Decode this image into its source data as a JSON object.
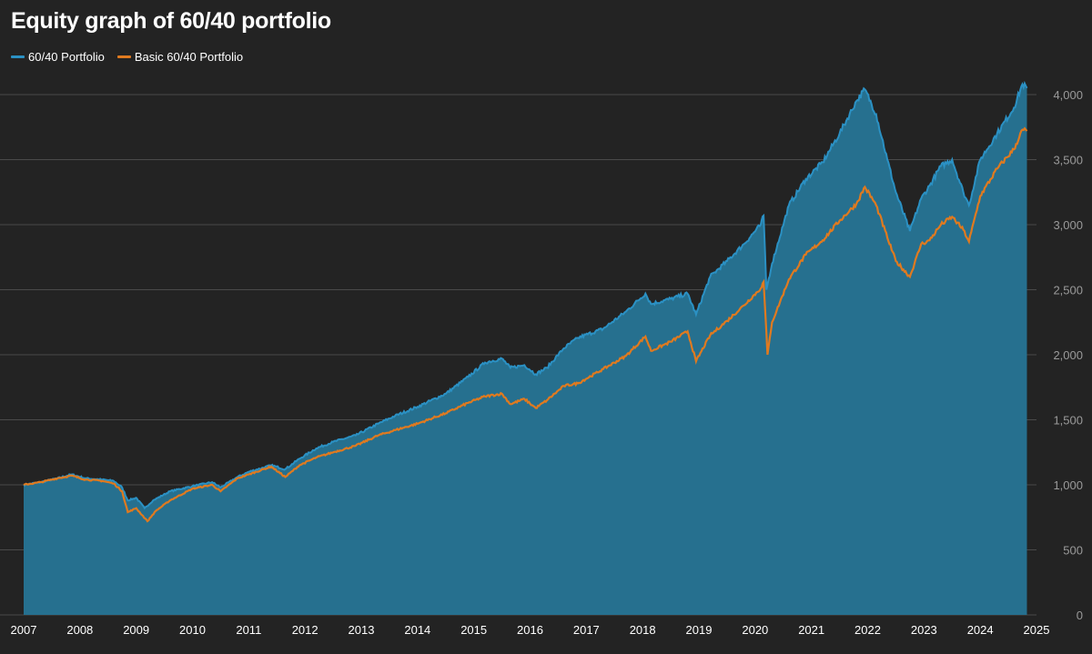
{
  "colors": {
    "background": "#232323",
    "grid": "#4a4a4a",
    "area_fill": "#26708f",
    "primary_line": "#2b91c4",
    "secondary_line": "#e07a1f",
    "axis_text": "#9a9a9a",
    "xaxis_text": "#ffffff"
  },
  "chart_data": {
    "type": "area",
    "title": "Equity graph of 60/40 portfolio",
    "xlabel": "",
    "ylabel": "",
    "legend_position": "top-left",
    "grid": true,
    "ylim": [
      0,
      4000
    ],
    "xlim": [
      2007.0,
      2025.0
    ],
    "x_ticks": [
      "2007",
      "2008",
      "2009",
      "2010",
      "2011",
      "2012",
      "2013",
      "2014",
      "2015",
      "2016",
      "2017",
      "2018",
      "2019",
      "2020",
      "2021",
      "2022",
      "2023",
      "2024",
      "2025"
    ],
    "y_ticks": [
      0,
      500,
      1000,
      1500,
      2000,
      2500,
      3000,
      3500,
      4000
    ],
    "y_tick_labels": [
      "0",
      "500",
      "1,000",
      "1,500",
      "2,000",
      "2,500",
      "3,000",
      "3,500",
      "4,000"
    ],
    "y_axis_side": "right",
    "series": [
      {
        "name": "60/40 Portfolio",
        "color": "#2b91c4",
        "filled": true,
        "points": [
          [
            2007.0,
            1000
          ],
          [
            2007.3,
            1020
          ],
          [
            2007.6,
            1050
          ],
          [
            2007.85,
            1080
          ],
          [
            2008.1,
            1050
          ],
          [
            2008.4,
            1040
          ],
          [
            2008.6,
            1030
          ],
          [
            2008.75,
            980
          ],
          [
            2008.85,
            880
          ],
          [
            2009.0,
            900
          ],
          [
            2009.15,
            820
          ],
          [
            2009.3,
            880
          ],
          [
            2009.6,
            950
          ],
          [
            2010.0,
            990
          ],
          [
            2010.35,
            1020
          ],
          [
            2010.5,
            980
          ],
          [
            2010.8,
            1060
          ],
          [
            2011.0,
            1100
          ],
          [
            2011.4,
            1150
          ],
          [
            2011.65,
            1120
          ],
          [
            2011.9,
            1200
          ],
          [
            2012.2,
            1280
          ],
          [
            2012.5,
            1330
          ],
          [
            2012.9,
            1380
          ],
          [
            2013.3,
            1470
          ],
          [
            2013.6,
            1530
          ],
          [
            2014.0,
            1600
          ],
          [
            2014.5,
            1700
          ],
          [
            2014.9,
            1830
          ],
          [
            2015.2,
            1940
          ],
          [
            2015.5,
            1970
          ],
          [
            2015.65,
            1900
          ],
          [
            2015.9,
            1920
          ],
          [
            2016.1,
            1850
          ],
          [
            2016.3,
            1900
          ],
          [
            2016.6,
            2050
          ],
          [
            2016.85,
            2130
          ],
          [
            2017.3,
            2200
          ],
          [
            2017.7,
            2330
          ],
          [
            2018.05,
            2470
          ],
          [
            2018.15,
            2390
          ],
          [
            2018.5,
            2430
          ],
          [
            2018.8,
            2470
          ],
          [
            2018.95,
            2310
          ],
          [
            2019.2,
            2600
          ],
          [
            2019.5,
            2720
          ],
          [
            2019.8,
            2850
          ],
          [
            2020.1,
            3000
          ],
          [
            2020.15,
            3070
          ],
          [
            2020.2,
            2500
          ],
          [
            2020.3,
            2700
          ],
          [
            2020.6,
            3150
          ],
          [
            2020.9,
            3350
          ],
          [
            2021.2,
            3480
          ],
          [
            2021.5,
            3700
          ],
          [
            2021.8,
            3950
          ],
          [
            2021.95,
            4040
          ],
          [
            2022.15,
            3850
          ],
          [
            2022.35,
            3500
          ],
          [
            2022.5,
            3250
          ],
          [
            2022.75,
            2950
          ],
          [
            2022.95,
            3200
          ],
          [
            2023.1,
            3300
          ],
          [
            2023.3,
            3450
          ],
          [
            2023.5,
            3500
          ],
          [
            2023.7,
            3250
          ],
          [
            2023.8,
            3150
          ],
          [
            2024.0,
            3500
          ],
          [
            2024.3,
            3700
          ],
          [
            2024.6,
            3900
          ],
          [
            2024.75,
            4080
          ],
          [
            2024.83,
            4050
          ]
        ]
      },
      {
        "name": "Basic 60/40 Portfolio",
        "color": "#e07a1f",
        "filled": false,
        "points": [
          [
            2007.0,
            1000
          ],
          [
            2007.3,
            1020
          ],
          [
            2007.6,
            1050
          ],
          [
            2007.85,
            1070
          ],
          [
            2008.1,
            1040
          ],
          [
            2008.4,
            1030
          ],
          [
            2008.6,
            1010
          ],
          [
            2008.75,
            950
          ],
          [
            2008.85,
            790
          ],
          [
            2009.0,
            820
          ],
          [
            2009.2,
            720
          ],
          [
            2009.35,
            800
          ],
          [
            2009.6,
            880
          ],
          [
            2010.0,
            970
          ],
          [
            2010.35,
            1000
          ],
          [
            2010.5,
            950
          ],
          [
            2010.8,
            1050
          ],
          [
            2011.0,
            1080
          ],
          [
            2011.4,
            1140
          ],
          [
            2011.65,
            1060
          ],
          [
            2011.9,
            1150
          ],
          [
            2012.2,
            1210
          ],
          [
            2012.5,
            1250
          ],
          [
            2012.9,
            1300
          ],
          [
            2013.3,
            1380
          ],
          [
            2013.6,
            1420
          ],
          [
            2014.0,
            1470
          ],
          [
            2014.5,
            1550
          ],
          [
            2014.9,
            1630
          ],
          [
            2015.2,
            1680
          ],
          [
            2015.5,
            1700
          ],
          [
            2015.65,
            1620
          ],
          [
            2015.9,
            1660
          ],
          [
            2016.1,
            1590
          ],
          [
            2016.3,
            1650
          ],
          [
            2016.6,
            1760
          ],
          [
            2016.85,
            1780
          ],
          [
            2017.3,
            1890
          ],
          [
            2017.7,
            1990
          ],
          [
            2018.05,
            2140
          ],
          [
            2018.15,
            2030
          ],
          [
            2018.5,
            2100
          ],
          [
            2018.8,
            2180
          ],
          [
            2018.95,
            1950
          ],
          [
            2019.2,
            2150
          ],
          [
            2019.5,
            2260
          ],
          [
            2019.8,
            2380
          ],
          [
            2020.1,
            2510
          ],
          [
            2020.15,
            2560
          ],
          [
            2020.22,
            2000
          ],
          [
            2020.3,
            2250
          ],
          [
            2020.6,
            2580
          ],
          [
            2020.9,
            2770
          ],
          [
            2021.2,
            2880
          ],
          [
            2021.5,
            3030
          ],
          [
            2021.8,
            3160
          ],
          [
            2021.95,
            3290
          ],
          [
            2022.15,
            3150
          ],
          [
            2022.35,
            2900
          ],
          [
            2022.5,
            2720
          ],
          [
            2022.75,
            2600
          ],
          [
            2022.95,
            2850
          ],
          [
            2023.1,
            2880
          ],
          [
            2023.3,
            3000
          ],
          [
            2023.5,
            3060
          ],
          [
            2023.7,
            2960
          ],
          [
            2023.8,
            2870
          ],
          [
            2024.0,
            3220
          ],
          [
            2024.3,
            3430
          ],
          [
            2024.6,
            3580
          ],
          [
            2024.75,
            3730
          ],
          [
            2024.83,
            3720
          ]
        ]
      }
    ]
  }
}
